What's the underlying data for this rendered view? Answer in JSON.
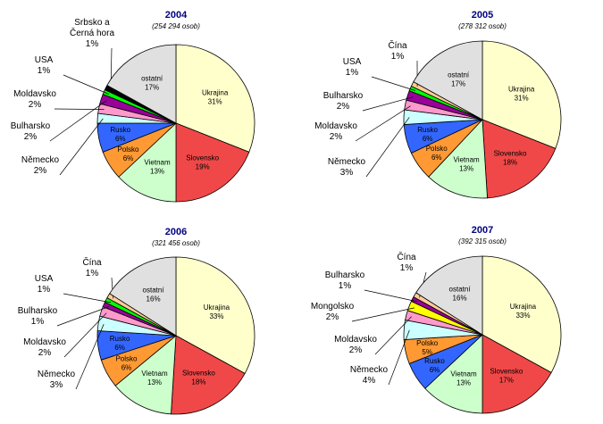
{
  "colors": {
    "Ukrajina": "#FFFFCC",
    "Slovensko": "#F04848",
    "Vietnam": "#CCFFCC",
    "Polsko": "#FF9933",
    "Rusko": "#3366FF",
    "Německo": "#CCFFFF",
    "Moldavsko": "#FF99CC",
    "Bulharsko": "#990099",
    "USA": "#00FF00",
    "Srbsko a Černá hora": "#000000",
    "Čína": "#FFCC99",
    "Mongolsko": "#FFFF00",
    "ostatní": "#E0E0E0"
  },
  "chart_data": [
    {
      "type": "pie",
      "title": "2004",
      "subtitle": "(254 294 osob)",
      "slices": [
        {
          "name": "Ukrajina",
          "label": "Ukrajina",
          "value": 31
        },
        {
          "name": "Slovensko",
          "label": "Slovensko",
          "value": 19
        },
        {
          "name": "Vietnam",
          "label": "Vietnam",
          "value": 13
        },
        {
          "name": "Polsko",
          "label": "Polsko",
          "value": 6
        },
        {
          "name": "Rusko",
          "label": "Rusko",
          "value": 6
        },
        {
          "name": "Německo",
          "label": "Německo",
          "value": 2
        },
        {
          "name": "Moldavsko",
          "label": "Moldavsko",
          "value": 2
        },
        {
          "name": "Bulharsko",
          "label": "Bulharsko",
          "value": 2
        },
        {
          "name": "USA",
          "label": "USA",
          "value": 1
        },
        {
          "name": "Srbsko a Černá hora",
          "label": "Srbsko a\nČerná hora",
          "value": 1
        },
        {
          "name": "ostatní",
          "label": "ostatní",
          "value": 17
        }
      ]
    },
    {
      "type": "pie",
      "title": "2005",
      "subtitle": "(278 312 osob)",
      "slices": [
        {
          "name": "Ukrajina",
          "label": "Ukrajina",
          "value": 31
        },
        {
          "name": "Slovensko",
          "label": "Slovensko",
          "value": 18
        },
        {
          "name": "Vietnam",
          "label": "Vietnam",
          "value": 13
        },
        {
          "name": "Polsko",
          "label": "Polsko",
          "value": 6
        },
        {
          "name": "Rusko",
          "label": "Rusko",
          "value": 6
        },
        {
          "name": "Německo",
          "label": "Německo",
          "value": 3
        },
        {
          "name": "Moldavsko",
          "label": "Moldavsko",
          "value": 2
        },
        {
          "name": "Bulharsko",
          "label": "Bulharsko",
          "value": 2
        },
        {
          "name": "USA",
          "label": "USA",
          "value": 1
        },
        {
          "name": "Čína",
          "label": "Čína",
          "value": 1
        },
        {
          "name": "ostatní",
          "label": "ostatní",
          "value": 17
        }
      ]
    },
    {
      "type": "pie",
      "title": "2006",
      "subtitle": "(321 456 osob)",
      "slices": [
        {
          "name": "Ukrajina",
          "label": "Ukrajina",
          "value": 33
        },
        {
          "name": "Slovensko",
          "label": "Slovensko",
          "value": 18
        },
        {
          "name": "Vietnam",
          "label": "Vietnam",
          "value": 13
        },
        {
          "name": "Polsko",
          "label": "Polsko",
          "value": 6
        },
        {
          "name": "Rusko",
          "label": "Rusko",
          "value": 6
        },
        {
          "name": "Německo",
          "label": "Německo",
          "value": 3
        },
        {
          "name": "Moldavsko",
          "label": "Moldavsko",
          "value": 2
        },
        {
          "name": "Bulharsko",
          "label": "Bulharsko",
          "value": 1
        },
        {
          "name": "USA",
          "label": "USA",
          "value": 1
        },
        {
          "name": "Čína",
          "label": "Čína",
          "value": 1
        },
        {
          "name": "ostatní",
          "label": "ostatní",
          "value": 16
        }
      ]
    },
    {
      "type": "pie",
      "title": "2007",
      "subtitle": "(392 315 osob)",
      "slices": [
        {
          "name": "Ukrajina",
          "label": "Ukrajina",
          "value": 33
        },
        {
          "name": "Slovensko",
          "label": "Slovensko",
          "value": 17
        },
        {
          "name": "Vietnam",
          "label": "Vietnam",
          "value": 13
        },
        {
          "name": "Rusko",
          "label": "Rusko",
          "value": 6
        },
        {
          "name": "Polsko",
          "label": "Polsko",
          "value": 5
        },
        {
          "name": "Německo",
          "label": "Německo",
          "value": 4
        },
        {
          "name": "Moldavsko",
          "label": "Moldavsko",
          "value": 2
        },
        {
          "name": "Mongolsko",
          "label": "Mongolsko",
          "value": 2
        },
        {
          "name": "Bulharsko",
          "label": "Bulharsko",
          "value": 1
        },
        {
          "name": "Čína",
          "label": "Čína",
          "value": 1
        },
        {
          "name": "ostatní",
          "label": "ostatní",
          "value": 16
        }
      ]
    }
  ]
}
